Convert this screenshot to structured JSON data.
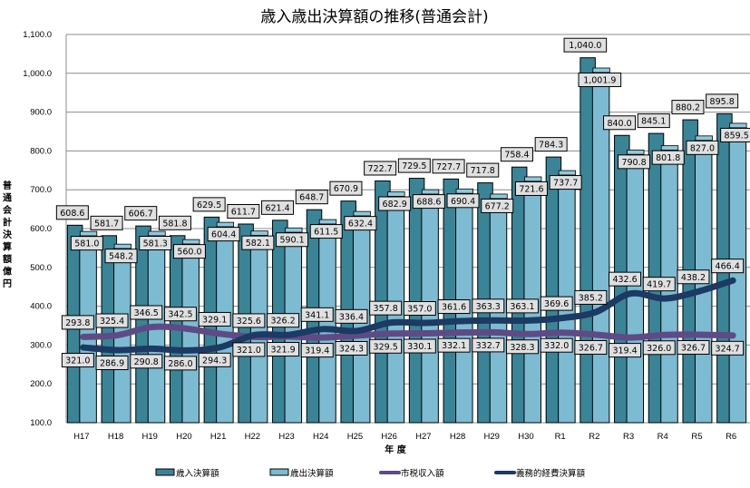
{
  "chart_data": {
    "type": "bar",
    "title": "歳入歳出決算額の推移(普通会計)",
    "xlabel": "年 度",
    "ylabel": "普通会計決算額(億円)",
    "ylim": [
      100,
      1100
    ],
    "yticks": [
      "100.0",
      "200.0",
      "300.0",
      "400.0",
      "500.0",
      "600.0",
      "700.0",
      "800.0",
      "900.0",
      "1,000.0",
      "1,100.0"
    ],
    "ytick_values": [
      100,
      200,
      300,
      400,
      500,
      600,
      700,
      800,
      900,
      1000,
      1100
    ],
    "grid": true,
    "legend_position": "bottom",
    "categories": [
      "H17",
      "H18",
      "H19",
      "H20",
      "H21",
      "H22",
      "H23",
      "H24",
      "H25",
      "H26",
      "H27",
      "H28",
      "H29",
      "H30",
      "R1",
      "R2",
      "R3",
      "R4",
      "R5",
      "R6"
    ],
    "series": [
      {
        "name": "歳入決算額",
        "kind": "bar",
        "color": "#3a8497",
        "values": [
          608.6,
          581.7,
          606.7,
          581.8,
          629.5,
          611.7,
          621.4,
          648.7,
          670.9,
          722.7,
          729.5,
          727.7,
          717.8,
          758.4,
          784.3,
          1040.0,
          840.0,
          845.1,
          880.2,
          895.8
        ],
        "labels": [
          "608.6",
          "581.7",
          "606.7",
          "581.8",
          "629.5",
          "611.7",
          "621.4",
          "648.7",
          "670.9",
          "722.7",
          "729.5",
          "727.7",
          "717.8",
          "758.4",
          "784.3",
          "1,040.0",
          "840.0",
          "845.1",
          "880.2",
          "895.8"
        ]
      },
      {
        "name": "歳出決算額",
        "kind": "bar",
        "color": "#7dbbd2",
        "values": [
          581.0,
          548.2,
          581.3,
          560.0,
          604.4,
          582.1,
          590.1,
          611.5,
          632.4,
          682.9,
          688.6,
          690.4,
          677.2,
          721.6,
          737.7,
          1001.9,
          790.8,
          801.8,
          827.0,
          859.5
        ],
        "labels": [
          "581.0",
          "548.2",
          "581.3",
          "560.0",
          "604.4",
          "582.1",
          "590.1",
          "611.5",
          "632.4",
          "682.9",
          "688.6",
          "690.4",
          "677.2",
          "721.6",
          "737.7",
          "1,001.9",
          "790.8",
          "801.8",
          "827.0",
          "859.5"
        ]
      },
      {
        "name": "市税収入額",
        "kind": "line",
        "color": "#5e4b86",
        "values": [
          321.0,
          325.4,
          346.5,
          342.5,
          329.1,
          321.0,
          321.9,
          319.4,
          324.3,
          329.5,
          330.1,
          332.1,
          332.7,
          328.3,
          332.0,
          326.7,
          319.4,
          326.0,
          326.7,
          324.7
        ],
        "labels": [
          "321.0",
          "325.4",
          "346.5",
          "342.5",
          "329.1",
          "321.0",
          "321.9",
          "319.4",
          "324.3",
          "329.5",
          "330.1",
          "332.1",
          "332.7",
          "328.3",
          "332.0",
          "326.7",
          "319.4",
          "326.0",
          "326.7",
          "324.7"
        ]
      },
      {
        "name": "義務的経費決算額",
        "kind": "line",
        "color": "#1c3a63",
        "values": [
          293.8,
          286.9,
          290.8,
          286.0,
          294.3,
          325.6,
          326.2,
          341.1,
          336.4,
          357.8,
          357.0,
          361.6,
          363.3,
          363.1,
          369.6,
          385.2,
          432.6,
          419.7,
          438.2,
          466.4
        ],
        "labels": [
          "293.8",
          "286.9",
          "290.8",
          "286.0",
          "294.3",
          "325.6",
          "326.2",
          "341.1",
          "336.4",
          "357.8",
          "357.0",
          "361.6",
          "363.3",
          "363.1",
          "369.6",
          "385.2",
          "432.6",
          "419.7",
          "438.2",
          "466.4"
        ]
      }
    ]
  }
}
